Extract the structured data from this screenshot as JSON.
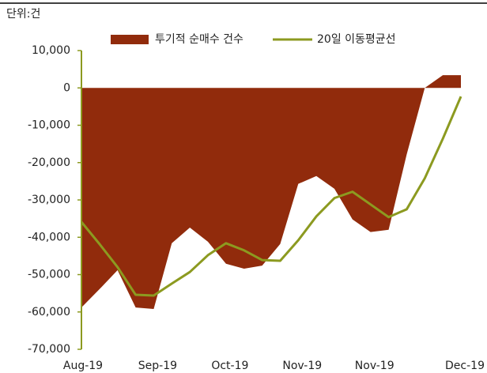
{
  "chart_data": {
    "type": "area_line",
    "subtitle": "단위:건",
    "categories": [
      "Aug-19",
      null,
      null,
      null,
      "Sep-19",
      null,
      null,
      null,
      "Oct-19",
      null,
      null,
      null,
      "Nov-19",
      null,
      null,
      null,
      "Nov-19",
      null,
      null,
      null,
      null,
      "Dec-19"
    ],
    "series": [
      {
        "name": "투기적 순매수 건수",
        "color": "#912b0c",
        "kind": "area",
        "values": [
          -58800,
          -53900,
          -48800,
          -58800,
          -59200,
          -41600,
          -37400,
          -41200,
          -47100,
          -48400,
          -47600,
          -41800,
          -25700,
          -23600,
          -27000,
          -35200,
          -38600,
          -38000,
          -17800,
          0,
          3400,
          3400
        ]
      },
      {
        "name": "20일 이동평균선",
        "color": "#8c9a20",
        "kind": "line",
        "values": [
          -35900,
          -41800,
          -48000,
          -55400,
          -55600,
          -52400,
          -49300,
          -44800,
          -41600,
          -43500,
          -46100,
          -46300,
          -40800,
          -34400,
          -29500,
          -27800,
          -31200,
          -34600,
          -32500,
          -24200,
          -13600,
          -2300
        ]
      }
    ],
    "ylim": [
      -70000,
      10000
    ],
    "yticks": [
      {
        "value": 10000,
        "label": "10,000"
      },
      0,
      {
        "value": -10000,
        "label": "-10,000"
      },
      {
        "value": -20000,
        "label": "-20,000"
      },
      {
        "value": -30000,
        "label": "-30,000"
      },
      {
        "value": -40000,
        "label": "-40,000"
      },
      {
        "value": -50000,
        "label": "-50,000"
      },
      {
        "value": -60000,
        "label": "-60,000"
      },
      {
        "value": -70000,
        "label": "-70,000"
      }
    ]
  }
}
